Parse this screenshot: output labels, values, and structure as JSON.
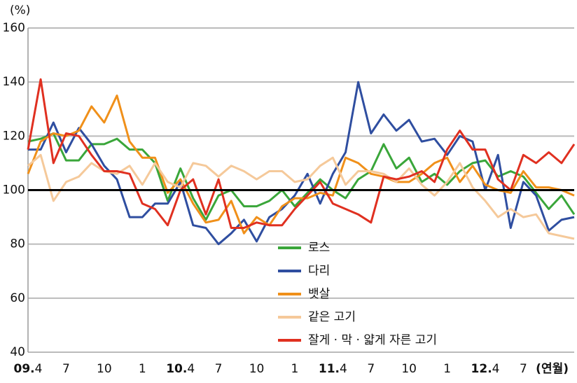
{
  "chart_data": {
    "type": "line",
    "ylabel": "(%)",
    "xlabel": "(연월)",
    "categories": [
      "09.4",
      null,
      null,
      "7",
      null,
      null,
      "10",
      null,
      null,
      "1",
      null,
      null,
      "10.4",
      null,
      null,
      "7",
      null,
      null,
      "10",
      null,
      null,
      "1",
      null,
      null,
      "11.4",
      null,
      null,
      "7",
      null,
      null,
      "10",
      null,
      null,
      "1",
      null,
      null,
      "12.4",
      null,
      null,
      "7",
      null,
      null,
      null,
      null
    ],
    "series": [
      {
        "name": "로스",
        "color": "#3aa63a",
        "values": [
          118,
          119,
          121,
          111,
          111,
          117,
          117,
          119,
          115,
          115,
          110,
          96,
          108,
          97,
          89,
          98,
          100,
          94,
          94,
          96,
          100,
          94,
          99,
          104,
          100,
          97,
          104,
          107,
          117,
          108,
          112,
          103,
          106,
          102,
          107,
          110,
          111,
          105,
          107,
          105,
          99,
          93,
          98,
          91
        ]
      },
      {
        "name": "다리",
        "color": "#2f4ea0",
        "values": [
          115,
          115,
          125,
          114,
          123,
          117,
          109,
          104,
          90,
          90,
          95,
          95,
          103,
          87,
          86,
          80,
          84,
          89,
          81,
          90,
          93,
          98,
          106,
          95,
          106,
          114,
          140,
          121,
          128,
          122,
          126,
          118,
          119,
          113,
          120,
          118,
          100,
          113,
          86,
          103,
          98,
          85,
          89,
          90
        ]
      },
      {
        "name": "뱃살",
        "color": "#f0901a",
        "values": [
          106,
          118,
          121,
          120,
          122,
          131,
          125,
          135,
          118,
          112,
          112,
          99,
          104,
          95,
          88,
          89,
          96,
          84,
          90,
          87,
          94,
          97,
          97,
          99,
          98,
          112,
          110,
          106,
          105,
          103,
          103,
          106,
          110,
          112,
          103,
          109,
          102,
          100,
          99,
          107,
          101,
          101,
          100,
          98
        ]
      },
      {
        "name": "같은 고기",
        "color": "#f5c99a",
        "values": [
          109,
          113,
          96,
          103,
          105,
          110,
          107,
          106,
          109,
          102,
          110,
          103,
          101,
          110,
          109,
          105,
          109,
          107,
          104,
          107,
          107,
          103,
          104,
          109,
          112,
          102,
          107,
          107,
          106,
          103,
          108,
          102,
          98,
          103,
          110,
          101,
          96,
          90,
          93,
          90,
          91,
          84,
          83,
          82
        ]
      },
      {
        "name": "잘게 · 막 · 얇게 자른 고기",
        "color": "#e03020",
        "values": [
          115,
          141,
          110,
          121,
          120,
          113,
          107,
          107,
          106,
          95,
          93,
          87,
          100,
          104,
          91,
          104,
          86,
          86,
          88,
          87,
          87,
          93,
          98,
          103,
          95,
          93,
          91,
          88,
          105,
          104,
          105,
          107,
          103,
          115,
          122,
          115,
          115,
          104,
          100,
          113,
          110,
          114,
          110,
          117
        ]
      }
    ],
    "ylim": [
      40,
      160
    ],
    "yticks": [
      40,
      60,
      80,
      100,
      120,
      140,
      160
    ],
    "grid": true,
    "hline": 100,
    "legend": "lower center"
  }
}
